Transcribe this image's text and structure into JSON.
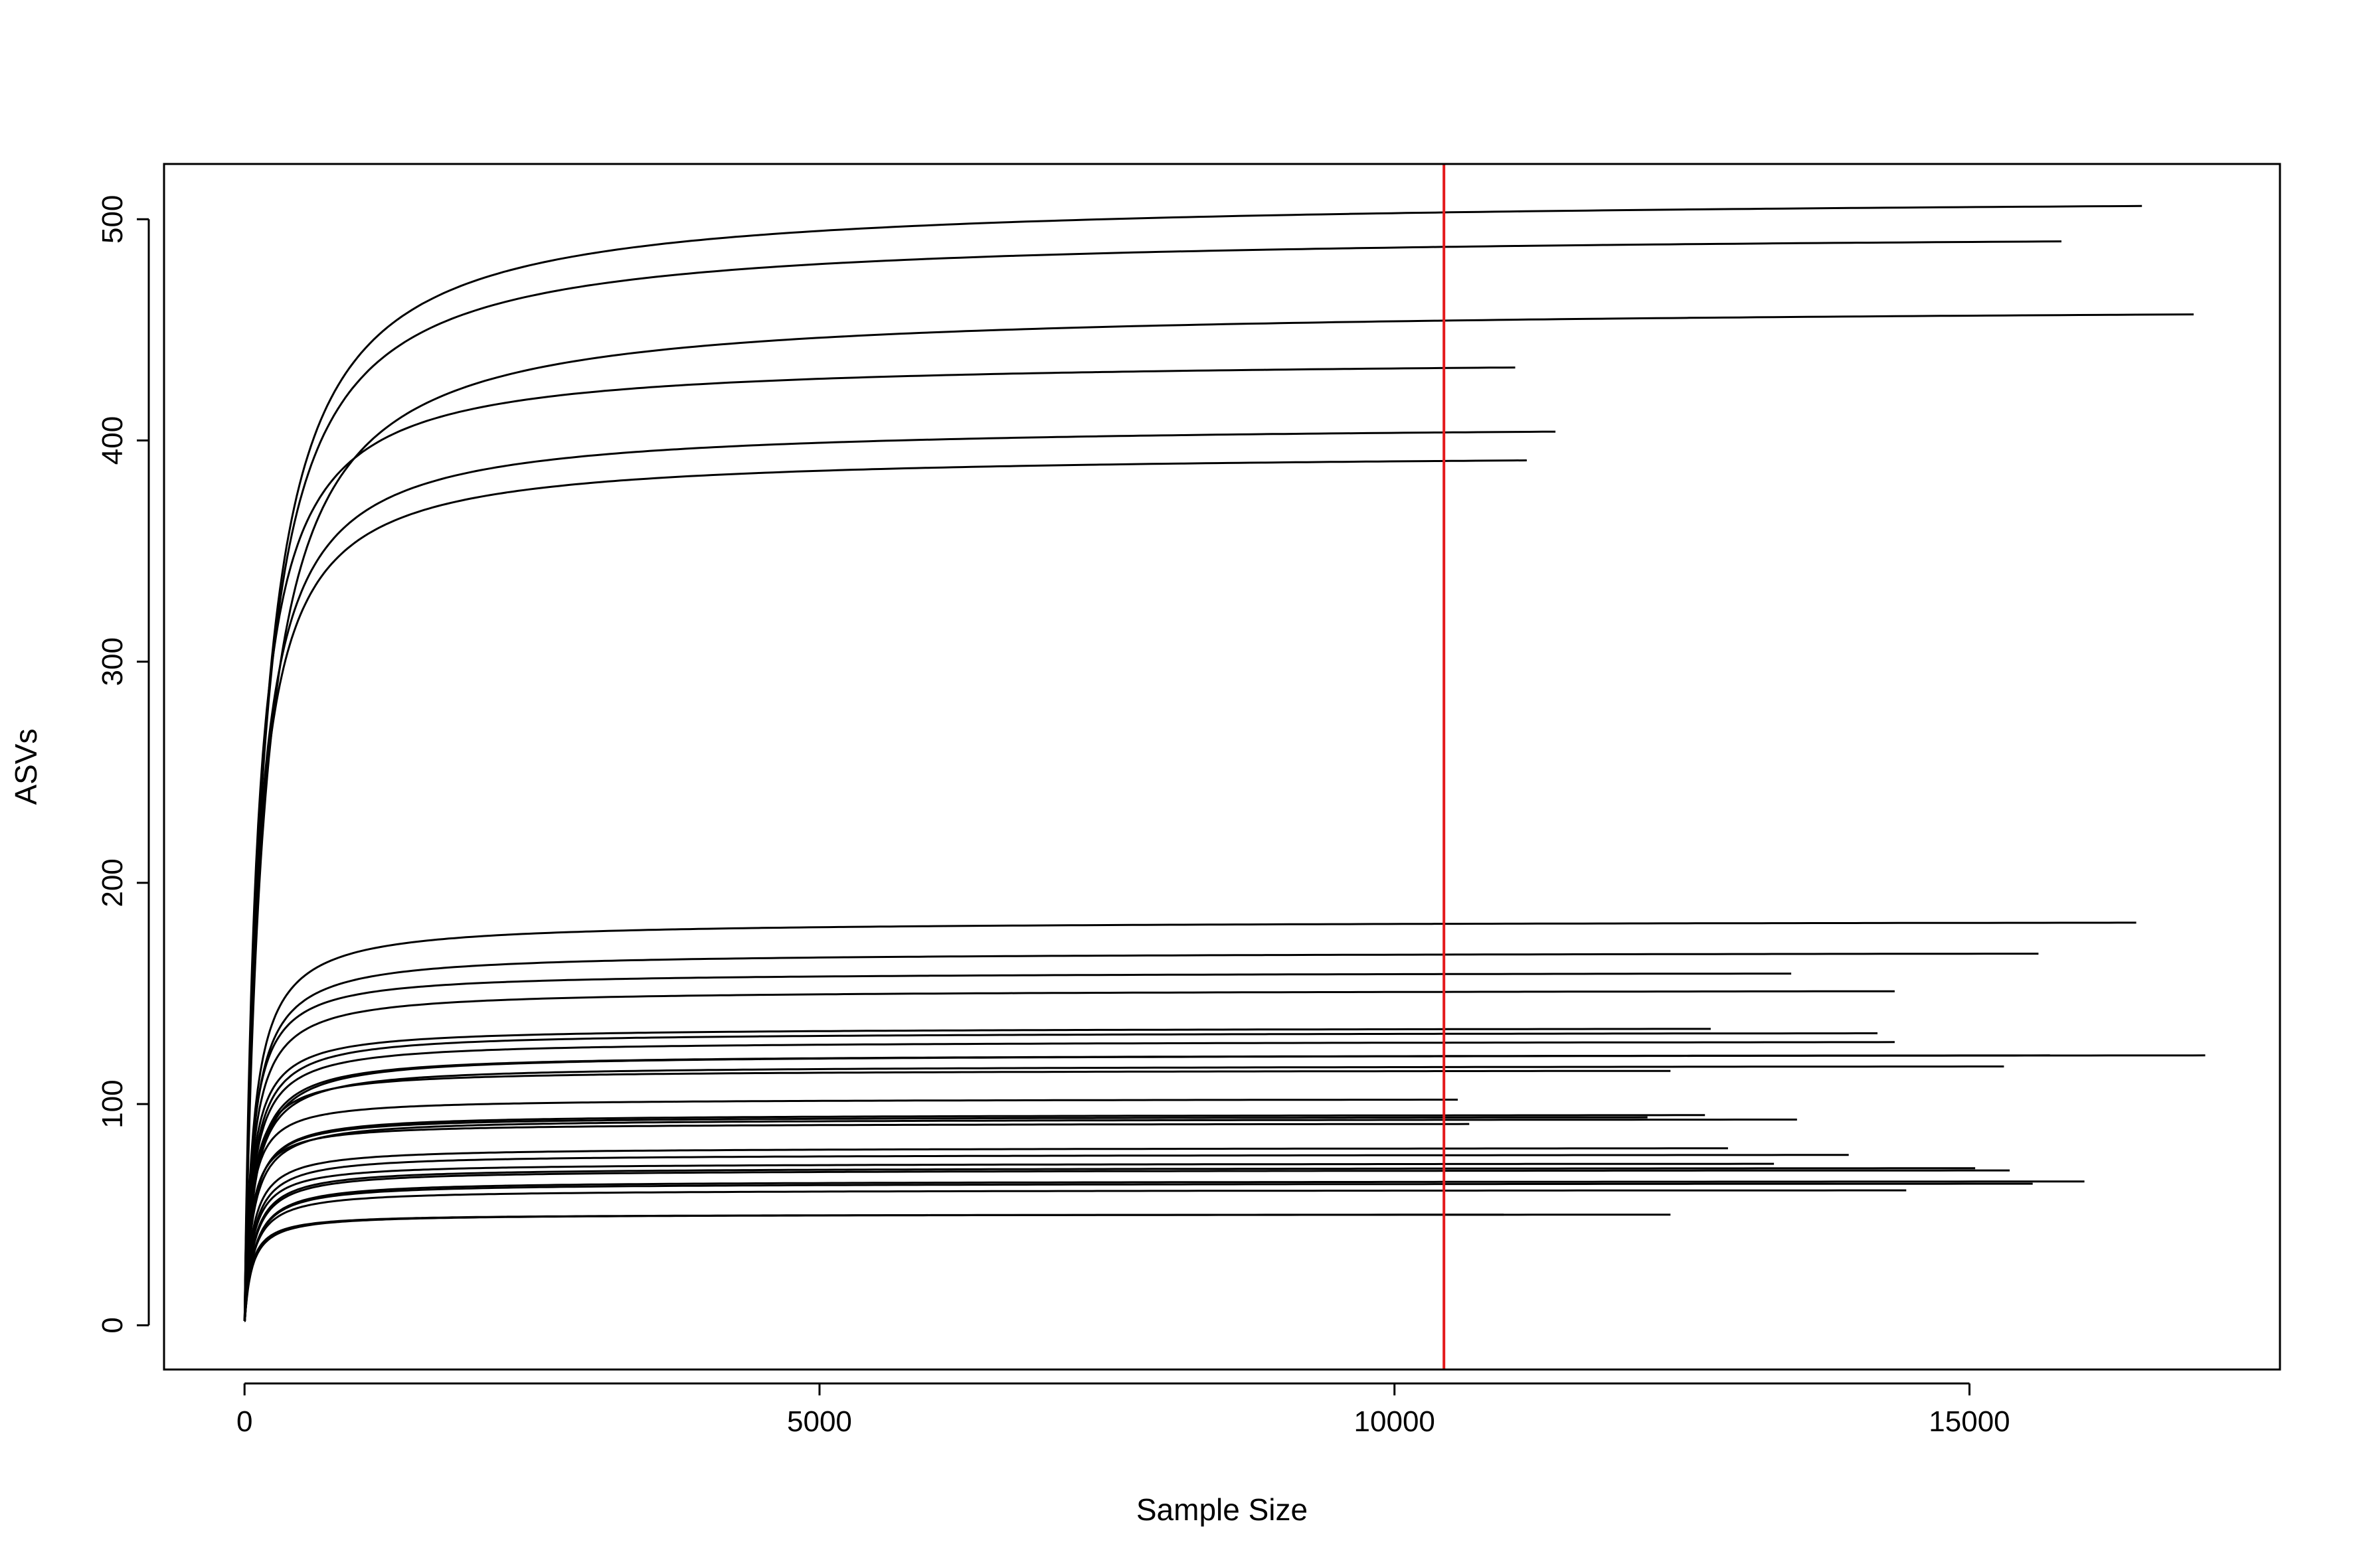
{
  "chart_data": {
    "type": "line",
    "title": "",
    "xlabel": "Sample Size",
    "ylabel": "ASVs",
    "xlim": [
      -700,
      17700
    ],
    "ylim": [
      -20,
      525
    ],
    "xticks": [
      0,
      5000,
      10000,
      15000
    ],
    "xtick_labels": [
      "0",
      "5000",
      "10000",
      "15000"
    ],
    "yticks": [
      0,
      100,
      200,
      300,
      400,
      500
    ],
    "ytick_labels": [
      "0",
      "100",
      "200",
      "300",
      "400",
      "500"
    ],
    "grid": false,
    "legend": "none",
    "line_color": "#000000",
    "reference_line": {
      "orientation": "vertical",
      "x": 10430,
      "color": "#e41a1c"
    },
    "series": [
      {
        "max_x": 16500,
        "final_y": 506
      },
      {
        "max_x": 15800,
        "final_y": 490
      },
      {
        "max_x": 16950,
        "final_y": 457
      },
      {
        "max_x": 11050,
        "final_y": 433
      },
      {
        "max_x": 11400,
        "final_y": 404
      },
      {
        "max_x": 11150,
        "final_y": 391
      },
      {
        "max_x": 16450,
        "final_y": 182
      },
      {
        "max_x": 15600,
        "final_y": 168
      },
      {
        "max_x": 13450,
        "final_y": 159
      },
      {
        "max_x": 14350,
        "final_y": 151
      },
      {
        "max_x": 12750,
        "final_y": 134
      },
      {
        "max_x": 14200,
        "final_y": 132
      },
      {
        "max_x": 14350,
        "final_y": 128
      },
      {
        "max_x": 15700,
        "final_y": 122
      },
      {
        "max_x": 17050,
        "final_y": 122
      },
      {
        "max_x": 15300,
        "final_y": 117
      },
      {
        "max_x": 12400,
        "final_y": 115
      },
      {
        "max_x": 10550,
        "final_y": 102
      },
      {
        "max_x": 12700,
        "final_y": 95
      },
      {
        "max_x": 12200,
        "final_y": 94
      },
      {
        "max_x": 13500,
        "final_y": 93
      },
      {
        "max_x": 10650,
        "final_y": 91
      },
      {
        "max_x": 12900,
        "final_y": 80
      },
      {
        "max_x": 13950,
        "final_y": 77
      },
      {
        "max_x": 13300,
        "final_y": 73
      },
      {
        "max_x": 15050,
        "final_y": 71
      },
      {
        "max_x": 15350,
        "final_y": 70
      },
      {
        "max_x": 16000,
        "final_y": 65
      },
      {
        "max_x": 15550,
        "final_y": 64
      },
      {
        "max_x": 14450,
        "final_y": 61
      },
      {
        "max_x": 10950,
        "final_y": 50
      },
      {
        "max_x": 12400,
        "final_y": 50
      }
    ]
  }
}
